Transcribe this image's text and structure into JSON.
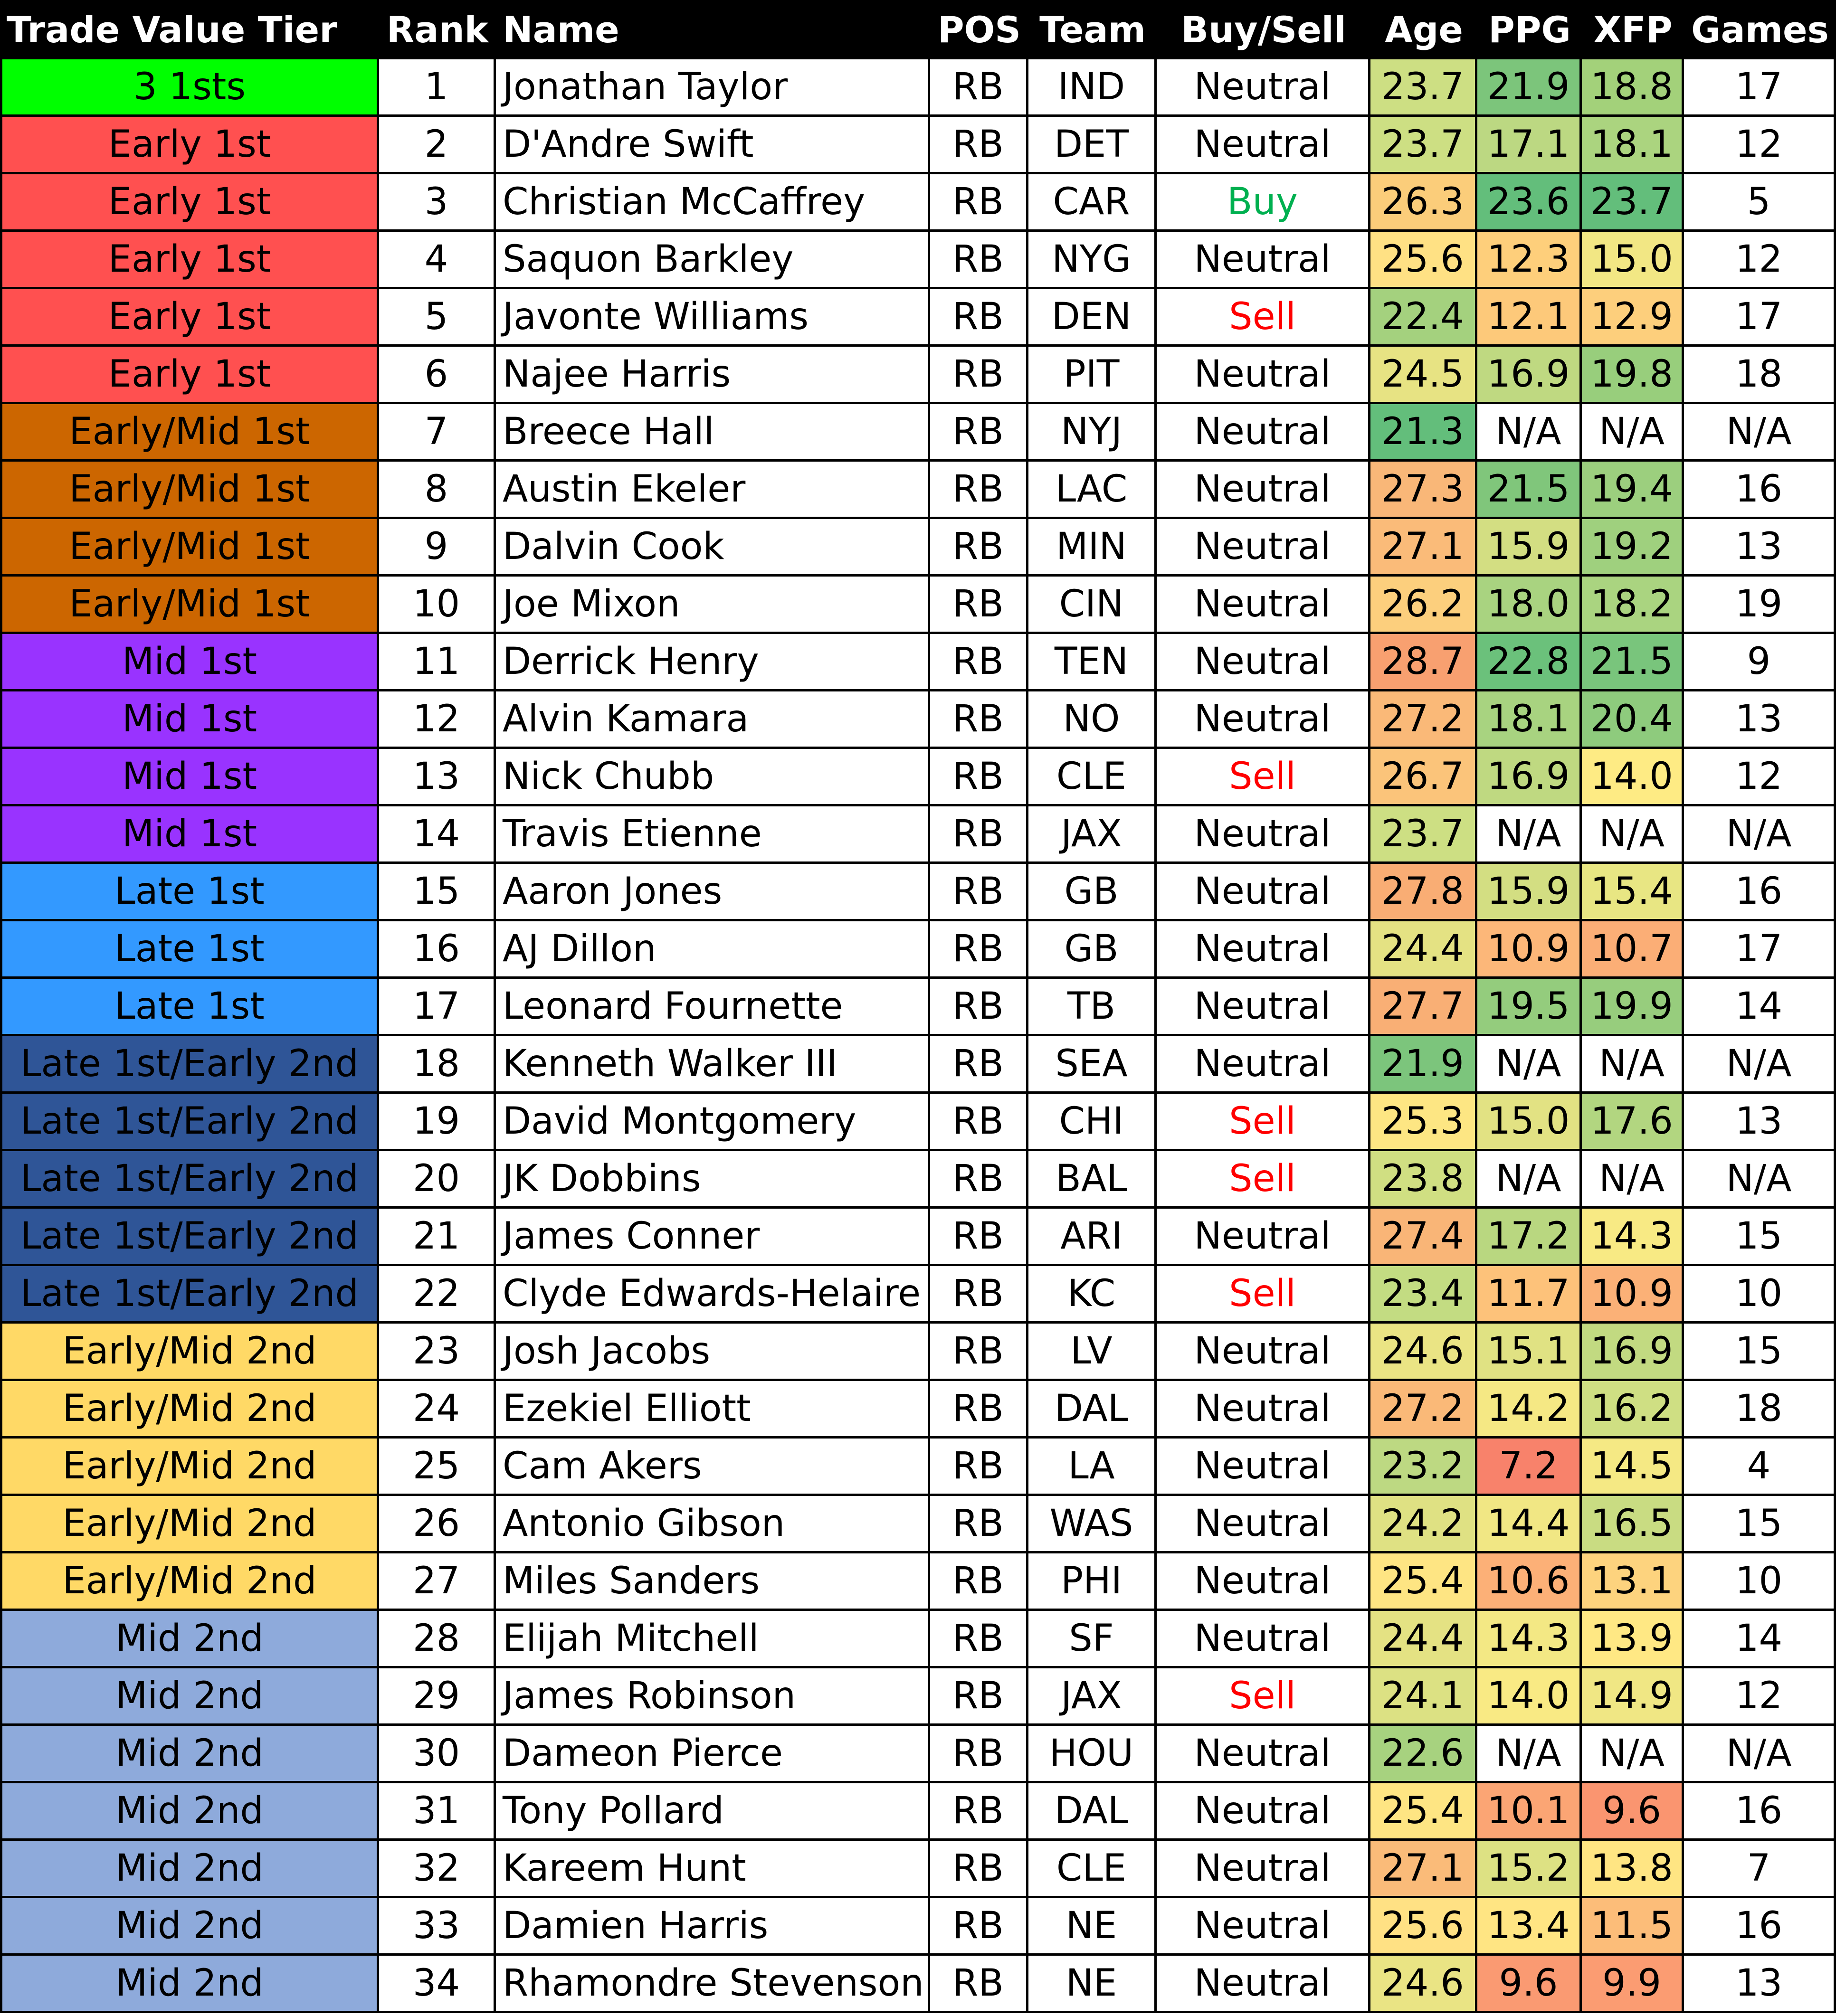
{
  "headers": {
    "tier": "Trade Value Tier",
    "rank": "Rank",
    "name": "Name",
    "pos": "POS",
    "team": "Team",
    "buysell": "Buy/Sell",
    "age": "Age",
    "ppg": "PPG",
    "xfp": "XFP",
    "games": "Games"
  },
  "tier_colors": {
    "3 1sts": "#00ff00",
    "Early 1st": "#ff5050",
    "Early/Mid 1st": "#cc6600",
    "Mid 1st": "#9933ff",
    "Late 1st": "#3399ff",
    "Late 1st/Early 2nd": "#2f5597",
    "Early/Mid 2nd": "#ffd966",
    "Mid 2nd": "#8eaadb"
  },
  "signal_colors": {
    "Buy": "#00b050",
    "Sell": "#ff0000",
    "Neutral": "#000000"
  },
  "rows": [
    {
      "tier": "3 1sts",
      "rank": "1",
      "name": "Jonathan Taylor",
      "pos": "RB",
      "team": "IND",
      "signal": "Neutral",
      "age": "23.7",
      "ppg": "21.9",
      "xfp": "18.8",
      "games": "17",
      "age_color": "#cddf83",
      "ppg_color": "#7cc57b",
      "xfp_color": "#a3d17a"
    },
    {
      "tier": "Early 1st",
      "rank": "2",
      "name": "D'Andre Swift",
      "pos": "RB",
      "team": "DET",
      "signal": "Neutral",
      "age": "23.7",
      "ppg": "17.1",
      "xfp": "18.1",
      "games": "12",
      "age_color": "#cddf83",
      "ppg_color": "#bcd882",
      "xfp_color": "#abd47f"
    },
    {
      "tier": "Early 1st",
      "rank": "3",
      "name": "Christian McCaffrey",
      "pos": "RB",
      "team": "CAR",
      "signal": "Buy",
      "age": "26.3",
      "ppg": "23.6",
      "xfp": "23.7",
      "games": "5",
      "age_color": "#fbcd7a",
      "ppg_color": "#63be7b",
      "xfp_color": "#63be7b"
    },
    {
      "tier": "Early 1st",
      "rank": "4",
      "name": "Saquon Barkley",
      "pos": "RB",
      "team": "NYG",
      "signal": "Neutral",
      "age": "25.6",
      "ppg": "12.3",
      "xfp": "15.0",
      "games": "12",
      "age_color": "#ffe184",
      "ppg_color": "#fecf7b",
      "xfp_color": "#f2e784"
    },
    {
      "tier": "Early 1st",
      "rank": "5",
      "name": "Javonte Williams",
      "pos": "RB",
      "team": "DEN",
      "signal": "Sell",
      "age": "22.4",
      "ppg": "12.1",
      "xfp": "12.9",
      "games": "17",
      "age_color": "#a4d17e",
      "ppg_color": "#fdc97a",
      "xfp_color": "#fdcf7c"
    },
    {
      "tier": "Early 1st",
      "rank": "6",
      "name": "Najee Harris",
      "pos": "RB",
      "team": "PIT",
      "signal": "Neutral",
      "age": "24.5",
      "ppg": "16.9",
      "xfp": "19.8",
      "games": "18",
      "age_color": "#e7e383",
      "ppg_color": "#bfd981",
      "xfp_color": "#98ce7c"
    },
    {
      "tier": "Early/Mid 1st",
      "rank": "7",
      "name": "Breece Hall",
      "pos": "RB",
      "team": "NYJ",
      "signal": "Neutral",
      "age": "21.3",
      "ppg": "N/A",
      "xfp": "N/A",
      "games": "N/A",
      "age_color": "#63be7b",
      "ppg_color": "#ffffff",
      "xfp_color": "#ffffff"
    },
    {
      "tier": "Early/Mid 1st",
      "rank": "8",
      "name": "Austin Ekeler",
      "pos": "RB",
      "team": "LAC",
      "signal": "Neutral",
      "age": "27.3",
      "ppg": "21.5",
      "xfp": "19.4",
      "games": "16",
      "age_color": "#f9b778",
      "ppg_color": "#80c67b",
      "xfp_color": "#9ccf7e"
    },
    {
      "tier": "Early/Mid 1st",
      "rank": "9",
      "name": "Dalvin Cook",
      "pos": "RB",
      "team": "MIN",
      "signal": "Neutral",
      "age": "27.1",
      "ppg": "15.9",
      "xfp": "19.2",
      "games": "13",
      "age_color": "#fabb79",
      "ppg_color": "#d3de82",
      "xfp_color": "#9fd07e"
    },
    {
      "tier": "Early/Mid 1st",
      "rank": "10",
      "name": "Joe Mixon",
      "pos": "RB",
      "team": "CIN",
      "signal": "Neutral",
      "age": "26.2",
      "ppg": "18.0",
      "xfp": "18.2",
      "games": "19",
      "age_color": "#fccf7d",
      "ppg_color": "#a9d380",
      "xfp_color": "#aad480"
    },
    {
      "tier": "Mid 1st",
      "rank": "11",
      "name": "Derrick Henry",
      "pos": "RB",
      "team": "TEN",
      "signal": "Neutral",
      "age": "28.7",
      "ppg": "22.8",
      "xfp": "21.5",
      "games": "9",
      "age_color": "#f8a070",
      "ppg_color": "#6bc17b",
      "xfp_color": "#79c57c"
    },
    {
      "tier": "Mid 1st",
      "rank": "12",
      "name": "Alvin Kamara",
      "pos": "RB",
      "team": "NO",
      "signal": "Neutral",
      "age": "27.2",
      "ppg": "18.1",
      "xfp": "20.4",
      "games": "13",
      "age_color": "#fab978",
      "ppg_color": "#a8d380",
      "xfp_color": "#8ecb7d"
    },
    {
      "tier": "Mid 1st",
      "rank": "13",
      "name": "Nick Chubb",
      "pos": "RB",
      "team": "CLE",
      "signal": "Sell",
      "age": "26.7",
      "ppg": "16.9",
      "xfp": "14.0",
      "games": "12",
      "age_color": "#fbc47a",
      "ppg_color": "#bfd981",
      "xfp_color": "#feeb84"
    },
    {
      "tier": "Mid 1st",
      "rank": "14",
      "name": "Travis Etienne",
      "pos": "RB",
      "team": "JAX",
      "signal": "Neutral",
      "age": "23.7",
      "ppg": "N/A",
      "xfp": "N/A",
      "games": "N/A",
      "age_color": "#cddf83",
      "ppg_color": "#ffffff",
      "xfp_color": "#ffffff"
    },
    {
      "tier": "Late 1st",
      "rank": "15",
      "name": "Aaron Jones",
      "pos": "RB",
      "team": "GB",
      "signal": "Neutral",
      "age": "27.8",
      "ppg": "15.9",
      "xfp": "15.4",
      "games": "16",
      "age_color": "#f9ad74",
      "ppg_color": "#d3de82",
      "xfp_color": "#e8e683"
    },
    {
      "tier": "Late 1st",
      "rank": "16",
      "name": "AJ Dillon",
      "pos": "RB",
      "team": "GB",
      "signal": "Neutral",
      "age": "24.4",
      "ppg": "10.9",
      "xfp": "10.7",
      "games": "17",
      "age_color": "#e4e283",
      "ppg_color": "#fcb779",
      "xfp_color": "#fbae76"
    },
    {
      "tier": "Late 1st",
      "rank": "17",
      "name": "Leonard Fournette",
      "pos": "RB",
      "team": "TB",
      "signal": "Neutral",
      "age": "27.7",
      "ppg": "19.5",
      "xfp": "19.9",
      "games": "14",
      "age_color": "#f9af75",
      "ppg_color": "#94cc7d",
      "xfp_color": "#97cd7d"
    },
    {
      "tier": "Late 1st/Early 2nd",
      "rank": "18",
      "name": "Kenneth Walker III",
      "pos": "RB",
      "team": "SEA",
      "signal": "Neutral",
      "age": "21.9",
      "ppg": "N/A",
      "xfp": "N/A",
      "games": "N/A",
      "age_color": "#7cc57c",
      "ppg_color": "#ffffff",
      "xfp_color": "#ffffff"
    },
    {
      "tier": "Late 1st/Early 2nd",
      "rank": "19",
      "name": "David Montgomery",
      "pos": "RB",
      "team": "CHI",
      "signal": "Sell",
      "age": "25.3",
      "ppg": "15.0",
      "xfp": "17.6",
      "games": "13",
      "age_color": "#fde683",
      "ppg_color": "#e2e283",
      "xfp_color": "#b2d680"
    },
    {
      "tier": "Late 1st/Early 2nd",
      "rank": "20",
      "name": "JK Dobbins",
      "pos": "RB",
      "team": "BAL",
      "signal": "Sell",
      "age": "23.8",
      "ppg": "N/A",
      "xfp": "N/A",
      "games": "N/A",
      "age_color": "#d0df82",
      "ppg_color": "#ffffff",
      "xfp_color": "#ffffff"
    },
    {
      "tier": "Late 1st/Early 2nd",
      "rank": "21",
      "name": "James Conner",
      "pos": "RB",
      "team": "ARI",
      "signal": "Neutral",
      "age": "27.4",
      "ppg": "17.2",
      "xfp": "14.3",
      "games": "15",
      "age_color": "#f9b577",
      "ppg_color": "#b9d780",
      "xfp_color": "#f8ea84"
    },
    {
      "tier": "Late 1st/Early 2nd",
      "rank": "22",
      "name": "Clyde Edwards-Helaire",
      "pos": "RB",
      "team": "KC",
      "signal": "Sell",
      "age": "23.4",
      "ppg": "11.7",
      "xfp": "10.9",
      "games": "10",
      "age_color": "#c3dc82",
      "ppg_color": "#fdc27a",
      "xfp_color": "#fbb177"
    },
    {
      "tier": "Early/Mid 2nd",
      "rank": "23",
      "name": "Josh Jacobs",
      "pos": "RB",
      "team": "LV",
      "signal": "Neutral",
      "age": "24.6",
      "ppg": "15.1",
      "xfp": "16.9",
      "games": "15",
      "age_color": "#eae484",
      "ppg_color": "#e0e283",
      "xfp_color": "#c2da81"
    },
    {
      "tier": "Early/Mid 2nd",
      "rank": "24",
      "name": "Ezekiel Elliott",
      "pos": "RB",
      "team": "DAL",
      "signal": "Neutral",
      "age": "27.2",
      "ppg": "14.2",
      "xfp": "16.2",
      "games": "18",
      "age_color": "#fab978",
      "ppg_color": "#f5e884",
      "xfp_color": "#cfdf83"
    },
    {
      "tier": "Early/Mid 2nd",
      "rank": "25",
      "name": "Cam Akers",
      "pos": "RB",
      "team": "LA",
      "signal": "Neutral",
      "age": "23.2",
      "ppg": "7.2",
      "xfp": "14.5",
      "games": "4",
      "age_color": "#bdd982",
      "ppg_color": "#f8826b",
      "xfp_color": "#f5e984"
    },
    {
      "tier": "Early/Mid 2nd",
      "rank": "26",
      "name": "Antonio Gibson",
      "pos": "RB",
      "team": "WAS",
      "signal": "Neutral",
      "age": "24.2",
      "ppg": "14.4",
      "xfp": "16.5",
      "games": "15",
      "age_color": "#dfe183",
      "ppg_color": "#f1e784",
      "xfp_color": "#c9dc82"
    },
    {
      "tier": "Early/Mid 2nd",
      "rank": "27",
      "name": "Miles Sanders",
      "pos": "RB",
      "team": "PHI",
      "signal": "Neutral",
      "age": "25.4",
      "ppg": "10.6",
      "xfp": "13.1",
      "games": "10",
      "age_color": "#fee583",
      "ppg_color": "#fcb077",
      "xfp_color": "#fdd37e"
    },
    {
      "tier": "Mid 2nd",
      "rank": "28",
      "name": "Elijah Mitchell",
      "pos": "RB",
      "team": "SF",
      "signal": "Neutral",
      "age": "24.4",
      "ppg": "14.3",
      "xfp": "13.9",
      "games": "14",
      "age_color": "#e4e283",
      "ppg_color": "#f3e884",
      "xfp_color": "#ffe884"
    },
    {
      "tier": "Mid 2nd",
      "rank": "29",
      "name": "James Robinson",
      "pos": "RB",
      "team": "JAX",
      "signal": "Sell",
      "age": "24.1",
      "ppg": "14.0",
      "xfp": "14.9",
      "games": "12",
      "age_color": "#dce183",
      "ppg_color": "#f9ea84",
      "xfp_color": "#f0e784"
    },
    {
      "tier": "Mid 2nd",
      "rank": "30",
      "name": "Dameon Pierce",
      "pos": "RB",
      "team": "HOU",
      "signal": "Neutral",
      "age": "22.6",
      "ppg": "N/A",
      "xfp": "N/A",
      "games": "N/A",
      "age_color": "#a7d27f",
      "ppg_color": "#ffffff",
      "xfp_color": "#ffffff"
    },
    {
      "tier": "Mid 2nd",
      "rank": "31",
      "name": "Tony Pollard",
      "pos": "RB",
      "team": "DAL",
      "signal": "Neutral",
      "age": "25.4",
      "ppg": "10.1",
      "xfp": "9.6",
      "games": "16",
      "age_color": "#fee583",
      "ppg_color": "#fba574",
      "xfp_color": "#fa9570"
    },
    {
      "tier": "Mid 2nd",
      "rank": "32",
      "name": "Kareem Hunt",
      "pos": "RB",
      "team": "CLE",
      "signal": "Neutral",
      "age": "27.1",
      "ppg": "15.2",
      "xfp": "13.8",
      "games": "7",
      "age_color": "#fabb79",
      "ppg_color": "#dde183",
      "xfp_color": "#ffe583"
    },
    {
      "tier": "Mid 2nd",
      "rank": "33",
      "name": "Damien Harris",
      "pos": "RB",
      "team": "NE",
      "signal": "Neutral",
      "age": "25.6",
      "ppg": "13.4",
      "xfp": "11.5",
      "games": "16",
      "age_color": "#ffe184",
      "ppg_color": "#ffe583",
      "xfp_color": "#fcbd79"
    },
    {
      "tier": "Mid 2nd",
      "rank": "34",
      "name": "Rhamondre Stevenson",
      "pos": "RB",
      "team": "NE",
      "signal": "Neutral",
      "age": "24.6",
      "ppg": "9.6",
      "xfp": "9.9",
      "games": "13",
      "age_color": "#eae484",
      "ppg_color": "#fa9a72",
      "xfp_color": "#fb9c72"
    }
  ]
}
